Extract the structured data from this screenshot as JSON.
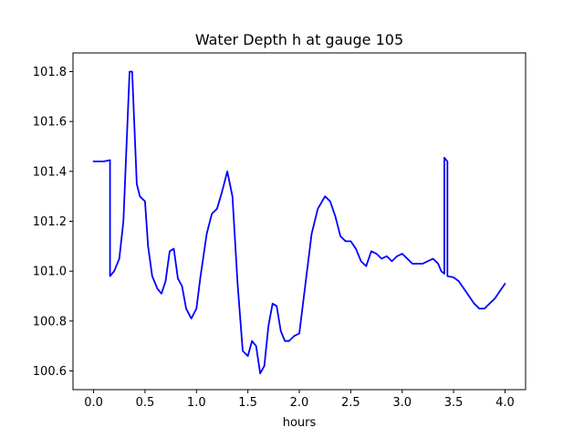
{
  "chart_data": {
    "type": "line",
    "title": "Water Depth h at gauge 105",
    "xlabel": "hours",
    "ylabel": "",
    "xlim": [
      -0.2,
      4.2
    ],
    "ylim": [
      100.525,
      101.875
    ],
    "xticks": [
      0.0,
      0.5,
      1.0,
      1.5,
      2.0,
      2.5,
      3.0,
      3.5,
      4.0
    ],
    "xtick_labels": [
      "0.0",
      "0.5",
      "1.0",
      "1.5",
      "2.0",
      "2.5",
      "3.0",
      "3.5",
      "4.0"
    ],
    "yticks": [
      100.6,
      100.8,
      101.0,
      101.2,
      101.4,
      101.6,
      101.8
    ],
    "ytick_labels": [
      "100.6",
      "100.8",
      "101.0",
      "101.2",
      "101.4",
      "101.6",
      "101.8"
    ],
    "grid": false,
    "series": [
      {
        "color": "#0000ff",
        "x": [
          0.0,
          0.1,
          0.16,
          0.16,
          0.2,
          0.25,
          0.29,
          0.32,
          0.35,
          0.375,
          0.4,
          0.42,
          0.45,
          0.5,
          0.53,
          0.57,
          0.62,
          0.66,
          0.7,
          0.74,
          0.78,
          0.82,
          0.86,
          0.9,
          0.95,
          1.0,
          1.04,
          1.1,
          1.15,
          1.2,
          1.25,
          1.3,
          1.35,
          1.4,
          1.45,
          1.5,
          1.54,
          1.58,
          1.62,
          1.66,
          1.7,
          1.74,
          1.78,
          1.82,
          1.86,
          1.9,
          1.95,
          2.0,
          2.06,
          2.12,
          2.18,
          2.25,
          2.3,
          2.35,
          2.4,
          2.45,
          2.5,
          2.55,
          2.6,
          2.65,
          2.7,
          2.75,
          2.8,
          2.85,
          2.9,
          2.95,
          3.0,
          3.05,
          3.1,
          3.15,
          3.2,
          3.25,
          3.3,
          3.35,
          3.38,
          3.41,
          3.41,
          3.44,
          3.44,
          3.5,
          3.55,
          3.6,
          3.65,
          3.7,
          3.75,
          3.8,
          3.85,
          3.9,
          3.95,
          4.0
        ],
        "y": [
          101.44,
          101.44,
          101.445,
          100.98,
          101.0,
          101.05,
          101.2,
          101.5,
          101.8,
          101.8,
          101.55,
          101.35,
          101.3,
          101.28,
          101.1,
          100.98,
          100.93,
          100.91,
          100.96,
          101.08,
          101.09,
          100.97,
          100.94,
          100.85,
          100.81,
          100.85,
          100.98,
          101.15,
          101.23,
          101.25,
          101.32,
          101.4,
          101.3,
          100.95,
          100.68,
          100.66,
          100.72,
          100.7,
          100.59,
          100.62,
          100.78,
          100.87,
          100.86,
          100.76,
          100.72,
          100.72,
          100.74,
          100.75,
          100.95,
          101.15,
          101.25,
          101.3,
          101.28,
          101.22,
          101.14,
          101.12,
          101.12,
          101.09,
          101.04,
          101.02,
          101.08,
          101.07,
          101.05,
          101.06,
          101.04,
          101.06,
          101.07,
          101.05,
          101.03,
          101.03,
          101.03,
          101.04,
          101.05,
          101.03,
          101.0,
          100.99,
          101.455,
          101.44,
          100.98,
          100.975,
          100.96,
          100.93,
          100.9,
          100.87,
          100.85,
          100.85,
          100.87,
          100.89,
          100.92,
          100.95
        ]
      }
    ]
  }
}
